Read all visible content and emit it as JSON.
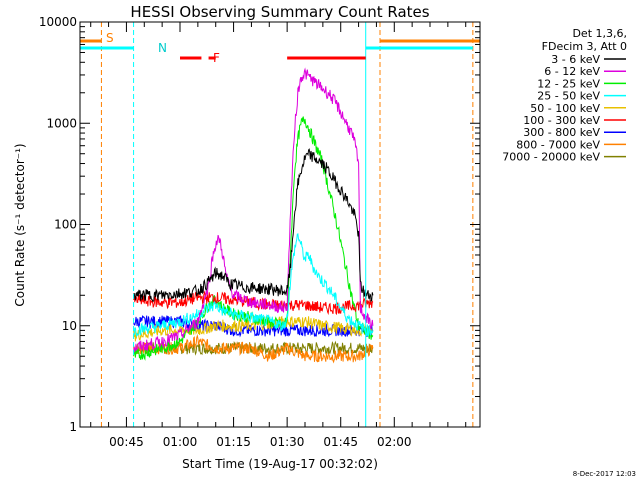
{
  "chart_data": {
    "type": "line",
    "title": "HESSI Observing Summary Count Rates",
    "xlabel": "Start Time (19-Aug-17 00:32:02)",
    "ylabel": "Count Rate (s⁻¹ detector⁻¹)",
    "y_scale": "log",
    "ylim": [
      1,
      10000
    ],
    "xlim_minutes": [
      32.0,
      144.0
    ],
    "y_ticks": [
      1,
      10,
      100,
      1000,
      10000
    ],
    "y_tick_labels": [
      "1",
      "10",
      "100",
      "1000",
      "10000"
    ],
    "x_ticks_minutes": [
      45,
      60,
      75,
      90,
      105,
      120
    ],
    "x_tick_labels": [
      "00:45",
      "01:00",
      "01:15",
      "01:30",
      "01:45",
      "02:00"
    ],
    "legend_header": [
      "Det 1,3,6,",
      "FDecim 3, Att 0"
    ],
    "legend_position": "right",
    "series": [
      {
        "name": "3 - 6 keV",
        "color": "#000000",
        "points": [
          [
            47,
            20
          ],
          [
            55,
            20
          ],
          [
            65,
            22
          ],
          [
            68,
            27
          ],
          [
            70,
            33
          ],
          [
            72,
            31
          ],
          [
            74,
            26
          ],
          [
            78,
            24
          ],
          [
            85,
            23
          ],
          [
            89,
            22
          ],
          [
            90,
            22
          ],
          [
            91,
            40
          ],
          [
            92,
            120
          ],
          [
            93,
            250
          ],
          [
            94,
            350
          ],
          [
            95,
            450
          ],
          [
            96,
            490
          ],
          [
            97,
            470
          ],
          [
            99,
            420
          ],
          [
            101,
            360
          ],
          [
            103,
            280
          ],
          [
            105,
            220
          ],
          [
            107,
            170
          ],
          [
            109,
            120
          ],
          [
            110,
            80
          ],
          [
            110.5,
            25
          ],
          [
            112,
            20
          ],
          [
            114,
            20
          ]
        ]
      },
      {
        "name": "6 - 12 keV",
        "color": "#dd00dd",
        "points": [
          [
            47,
            6
          ],
          [
            55,
            7
          ],
          [
            60,
            8
          ],
          [
            65,
            11
          ],
          [
            68,
            25
          ],
          [
            69,
            45
          ],
          [
            70,
            65
          ],
          [
            71,
            72
          ],
          [
            72,
            50
          ],
          [
            73,
            30
          ],
          [
            75,
            20
          ],
          [
            80,
            17
          ],
          [
            85,
            16
          ],
          [
            89,
            15
          ],
          [
            90,
            16
          ],
          [
            91,
            150
          ],
          [
            92,
            800
          ],
          [
            93,
            2000
          ],
          [
            94,
            2900
          ],
          [
            95,
            3100
          ],
          [
            96,
            2900
          ],
          [
            98,
            2500
          ],
          [
            100,
            2200
          ],
          [
            102,
            1900
          ],
          [
            104,
            1500
          ],
          [
            106,
            1100
          ],
          [
            108,
            800
          ],
          [
            109,
            620
          ],
          [
            110,
            400
          ],
          [
            110.5,
            15
          ],
          [
            112,
            12
          ],
          [
            114,
            10
          ]
        ]
      },
      {
        "name": "12 - 25 keV",
        "color": "#00ee00",
        "points": [
          [
            47,
            5
          ],
          [
            55,
            6
          ],
          [
            60,
            7
          ],
          [
            65,
            11
          ],
          [
            68,
            16
          ],
          [
            70,
            18
          ],
          [
            72,
            15
          ],
          [
            75,
            13
          ],
          [
            80,
            12
          ],
          [
            85,
            11
          ],
          [
            89,
            10
          ],
          [
            90,
            12
          ],
          [
            91,
            60
          ],
          [
            92,
            320
          ],
          [
            93,
            700
          ],
          [
            94,
            1000
          ],
          [
            95,
            1100
          ],
          [
            96,
            900
          ],
          [
            98,
            600
          ],
          [
            100,
            400
          ],
          [
            102,
            200
          ],
          [
            104,
            100
          ],
          [
            106,
            45
          ],
          [
            108,
            20
          ],
          [
            110,
            10
          ],
          [
            112,
            9
          ],
          [
            114,
            8
          ]
        ]
      },
      {
        "name": "25 - 50 keV",
        "color": "#00ffff",
        "points": [
          [
            47,
            9
          ],
          [
            55,
            10
          ],
          [
            60,
            11
          ],
          [
            65,
            13
          ],
          [
            68,
            15
          ],
          [
            70,
            16
          ],
          [
            72,
            14
          ],
          [
            75,
            13
          ],
          [
            80,
            12
          ],
          [
            85,
            11
          ],
          [
            89,
            10
          ],
          [
            90,
            12
          ],
          [
            91,
            30
          ],
          [
            92,
            55
          ],
          [
            93,
            80
          ],
          [
            94,
            60
          ],
          [
            95,
            45
          ],
          [
            96,
            50
          ],
          [
            97,
            40
          ],
          [
            99,
            30
          ],
          [
            101,
            25
          ],
          [
            103,
            20
          ],
          [
            105,
            15
          ],
          [
            107,
            12
          ],
          [
            110,
            10
          ],
          [
            112,
            9
          ],
          [
            114,
            9
          ]
        ]
      },
      {
        "name": "50 - 100 keV",
        "color": "#e8c000",
        "points": [
          [
            47,
            8
          ],
          [
            55,
            9
          ],
          [
            65,
            9
          ],
          [
            70,
            10
          ],
          [
            80,
            10
          ],
          [
            90,
            11
          ],
          [
            95,
            11
          ],
          [
            100,
            10
          ],
          [
            110,
            9
          ],
          [
            114,
            9
          ]
        ]
      },
      {
        "name": "100 - 300 keV",
        "color": "#ff0000",
        "points": [
          [
            47,
            18
          ],
          [
            55,
            17
          ],
          [
            60,
            17
          ],
          [
            65,
            19
          ],
          [
            70,
            19
          ],
          [
            75,
            18
          ],
          [
            80,
            17
          ],
          [
            85,
            16
          ],
          [
            90,
            16
          ],
          [
            95,
            16
          ],
          [
            100,
            15
          ],
          [
            105,
            15
          ],
          [
            110,
            16
          ],
          [
            114,
            17
          ]
        ]
      },
      {
        "name": "300 - 800 keV",
        "color": "#0000ff",
        "points": [
          [
            47,
            11
          ],
          [
            55,
            11
          ],
          [
            60,
            11
          ],
          [
            65,
            10
          ],
          [
            70,
            10
          ],
          [
            75,
            9
          ],
          [
            80,
            9
          ],
          [
            85,
            9
          ],
          [
            90,
            9
          ],
          [
            95,
            9
          ],
          [
            100,
            9
          ],
          [
            105,
            9
          ],
          [
            110,
            9
          ],
          [
            114,
            9
          ]
        ]
      },
      {
        "name": "800 - 7000 keV",
        "color": "#ff8000",
        "points": [
          [
            47,
            6
          ],
          [
            55,
            6
          ],
          [
            60,
            6
          ],
          [
            65,
            7
          ],
          [
            70,
            6
          ],
          [
            75,
            6
          ],
          [
            80,
            6
          ],
          [
            85,
            5
          ],
          [
            90,
            6
          ],
          [
            95,
            5
          ],
          [
            100,
            5
          ],
          [
            105,
            5
          ],
          [
            110,
            5
          ],
          [
            114,
            6
          ]
        ]
      },
      {
        "name": "7000 - 20000 keV",
        "color": "#808000",
        "points": [
          [
            47,
            6
          ],
          [
            55,
            6
          ],
          [
            65,
            6
          ],
          [
            75,
            6
          ],
          [
            85,
            6
          ],
          [
            95,
            6
          ],
          [
            105,
            6
          ],
          [
            114,
            6
          ]
        ]
      }
    ],
    "annotations": {
      "s_label": "S",
      "n_label": "N",
      "f_label": "F",
      "saa_bar_color": "#ff8000",
      "night_bar_color": "#00ffff",
      "flare_bar_color": "#ff0000",
      "saa_intervals": [
        [
          32,
          38
        ],
        [
          116,
          144
        ]
      ],
      "night_intervals": [
        [
          32,
          47
        ],
        [
          112,
          142
        ]
      ],
      "flare_intervals": [
        [
          60,
          66
        ],
        [
          68,
          70
        ],
        [
          90,
          112
        ]
      ],
      "saa_dashed_lines": [
        38,
        116,
        142
      ],
      "night_dashed_lines": [
        47
      ],
      "night_solid_lines": [
        32,
        112
      ]
    },
    "timestamp": "8-Dec-2017 12:03"
  }
}
